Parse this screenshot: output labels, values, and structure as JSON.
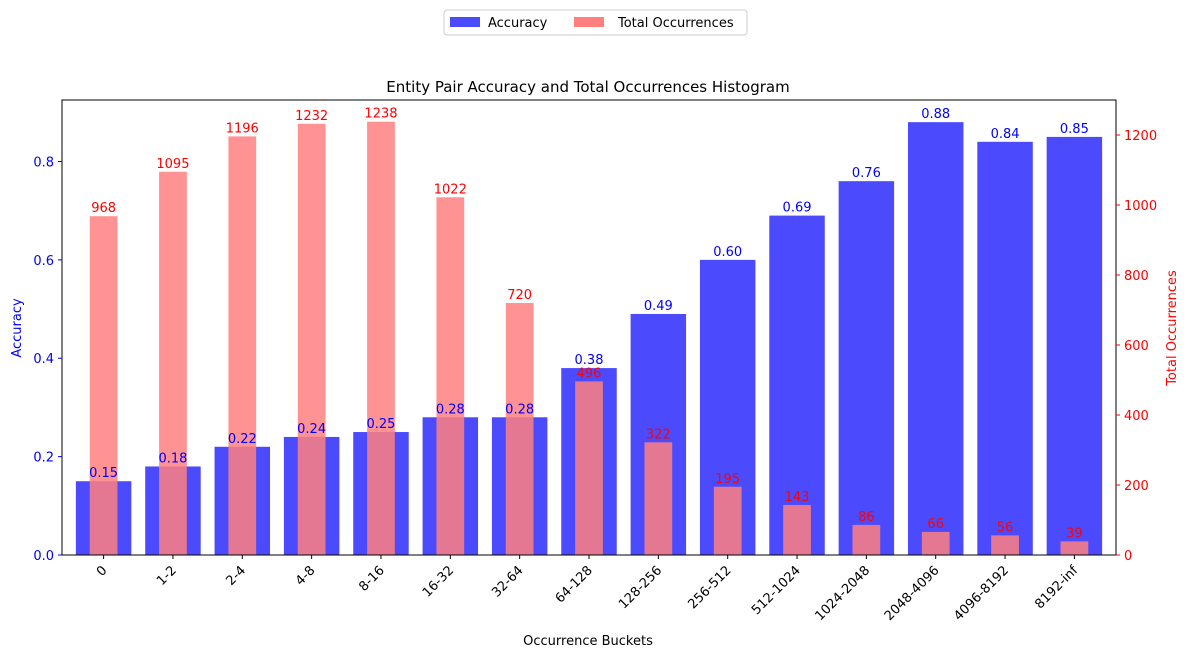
{
  "chart_data": {
    "type": "bar",
    "title": "Entity Pair Accuracy and Total Occurrences Histogram",
    "xlabel": "Occurrence Buckets",
    "ylabel_left": "Accuracy",
    "ylabel_right": "Total Occurrences",
    "categories": [
      "0",
      "1-2",
      "2-4",
      "4-8",
      "8-16",
      "16-32",
      "32-64",
      "64-128",
      "128-256",
      "256-512",
      "512-1024",
      "1024-2048",
      "2048-4096",
      "4096-8192",
      "8192-inf"
    ],
    "series": [
      {
        "name": "Accuracy",
        "axis": "left",
        "color": "#4b4bfd",
        "label_color": "#0000ff",
        "values": [
          0.15,
          0.18,
          0.22,
          0.24,
          0.25,
          0.28,
          0.28,
          0.38,
          0.49,
          0.6,
          0.69,
          0.76,
          0.88,
          0.84,
          0.85
        ],
        "labels": [
          "0.15",
          "0.18",
          "0.22",
          "0.24",
          "0.25",
          "0.28",
          "0.28",
          "0.38",
          "0.49",
          "0.60",
          "0.69",
          "0.76",
          "0.88",
          "0.84",
          "0.85"
        ]
      },
      {
        "name": "Total Occurrences",
        "axis": "right",
        "color": "#ff7f7f",
        "label_color": "#ff0000",
        "values": [
          968,
          1095,
          1196,
          1232,
          1238,
          1022,
          720,
          496,
          322,
          195,
          143,
          86,
          66,
          56,
          39
        ],
        "labels": [
          "968",
          "1095",
          "1196",
          "1232",
          "1238",
          "1022",
          "720",
          "496",
          "322",
          "195",
          "143",
          "86",
          "66",
          "56",
          "39"
        ]
      }
    ],
    "y_left": {
      "lim": [
        0,
        0.925
      ],
      "ticks": [
        "0.0",
        "0.2",
        "0.4",
        "0.6",
        "0.8"
      ],
      "tick_values": [
        0,
        0.2,
        0.4,
        0.6,
        0.8
      ],
      "color": "#0000ff"
    },
    "y_right": {
      "lim": [
        0,
        1300
      ],
      "ticks": [
        "0",
        "200",
        "400",
        "600",
        "800",
        "1000",
        "1200"
      ],
      "tick_values": [
        0,
        200,
        400,
        600,
        800,
        1000,
        1200
      ],
      "color": "#ff0000"
    },
    "legend_position": "top-center",
    "grid": false
  }
}
